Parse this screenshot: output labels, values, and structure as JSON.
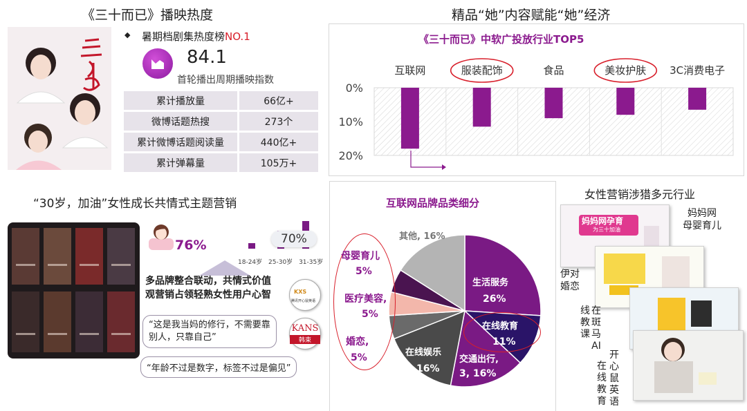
{
  "left_top": {
    "title": "《三十而已》播映热度",
    "bullet": "◆",
    "rank_text": "暑期档剧集热度榜",
    "rank_value": "NO.1",
    "index_value": "84.1",
    "index_label": "首轮播出周期播映指数",
    "stats": [
      {
        "label": "累计播放量",
        "value": "66亿+"
      },
      {
        "label": "微博话题热搜",
        "value": "273个"
      },
      {
        "label": "累计微博话题阅读量",
        "value": "440亿+"
      },
      {
        "label": "累计弹幕量",
        "value": "105万+"
      }
    ]
  },
  "left_bottom": {
    "title": "“30岁，加油”女性成长共情式主题营销",
    "female_percent": "76%",
    "age_percent": "70%",
    "age_bars": {
      "categories": [
        "18-24岁",
        "25-30岁",
        "31-35岁"
      ],
      "values": [
        15,
        70,
        15
      ]
    },
    "summary_line1": "多品牌整合联动，共情式价值",
    "summary_line2": "观营销占领轻熟女性用户心智",
    "quote1_line1": "“这是我当妈的修行，不需要靠",
    "quote1_line2": "别人，只靠自己”",
    "quote2": "“年龄不过是数字，标签不过是偏见”",
    "logo1_text": "腾讯开心鼠英语",
    "logo2_text": "KANS",
    "logo2_sub": "韩束"
  },
  "right_top": {
    "title": "精品“她”内容赋能“她”经济",
    "chart_title": "《三十而已》中软广投放行业TOP5",
    "accent": "#8b1a8e",
    "highlight": "#d81e2a"
  },
  "chart_data": [
    {
      "type": "bar",
      "title": "《三十而已》中软广投放行业TOP5",
      "categories": [
        "互联网",
        "服装配饰",
        "食品",
        "美妆护肤",
        "3C消费电子"
      ],
      "values": [
        18,
        11.5,
        9,
        8,
        6.5
      ],
      "ytick_labels": [
        "0%",
        "10%",
        "20%"
      ],
      "ylim": [
        0,
        20
      ],
      "y_inverted": true,
      "highlighted": [
        "服装配饰",
        "美妆护肤"
      ]
    },
    {
      "type": "pie",
      "title": "互联网品牌品类细分",
      "slices": [
        {
          "label": "生活服务",
          "value": 26,
          "text": "26%",
          "color": "#7a1a84"
        },
        {
          "label": "在线教育",
          "value": 11,
          "text": "11%",
          "color": "#2a1468"
        },
        {
          "label": "交通出行",
          "value": 16,
          "text": "3, 16%",
          "color": "#7a1a84"
        },
        {
          "label": "在线娱乐",
          "value": 16,
          "text": "16%",
          "color": "#4a4a4a"
        },
        {
          "label": "婚恋",
          "value": 5,
          "text": "5%",
          "color": "#6a6a6a"
        },
        {
          "label": "医疗美容",
          "value": 5,
          "text": "5%",
          "color": "#f3b7ab"
        },
        {
          "label": "母婴育儿",
          "value": 5,
          "text": "5%",
          "color": "#4a1450"
        },
        {
          "label": "其他",
          "value": 16,
          "text": "16%",
          "color": "#b4b4b4"
        }
      ]
    }
  ],
  "pie_labels": {
    "other": "其他, 16%",
    "life": "生活服务",
    "life_pct": "26%",
    "edu": "在线教育",
    "edu_pct": "11%",
    "traffic": "交通出行,",
    "traffic_pct": "3, 16%",
    "ent": "在线娱乐",
    "ent_pct": "16%",
    "baby": "母婴育儿",
    "baby_pct": "5%",
    "med": "医疗美容,",
    "med_pct": "5%",
    "marriage": "婚恋,",
    "marriage_pct": "5%"
  },
  "right_bottom": {
    "title": "女性营销涉猎多元行业",
    "label_mama": "妈妈网",
    "label_mama2": "母婴育儿",
    "label_yidui": "伊对",
    "label_yidui2": "婚恋",
    "label_banma": "在斑马AI",
    "label_banma2": "线教课",
    "label_banma3": "教育",
    "label_kxs1": "在线教育",
    "label_kxs2": "开心鼠英语",
    "shot_title_mama": "妈妈网孕育",
    "shot_sub_mama": "为三十加油"
  }
}
